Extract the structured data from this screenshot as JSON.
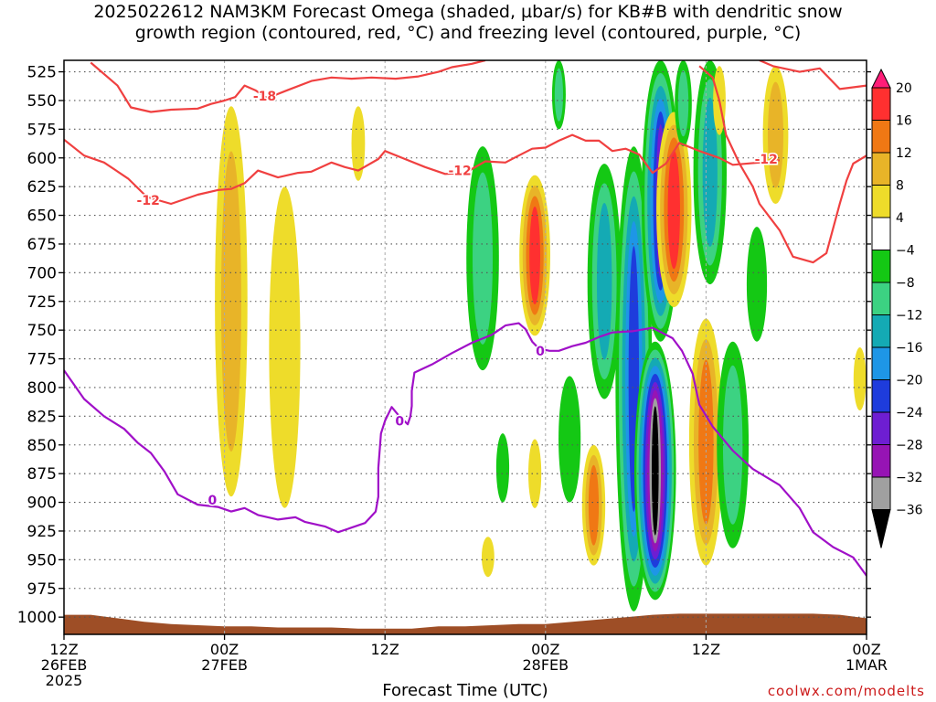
{
  "title": {
    "line1": "2025022612 NAM3KM Forecast Omega (shaded, µbar/s) for KB#B with dendritic snow",
    "line2": "growth region (contoured, red, °C) and freezing level (contoured, purple, °C)"
  },
  "credit": "coolwx.com/modelts",
  "chart_data": {
    "type": "heatmap",
    "title": "2025022612 NAM3KM Forecast Omega (shaded, µbar/s) for KB#B with dendritic snow growth region (contoured, red, °C) and freezing level (contoured, purple, °C)",
    "xlabel": "Forecast Time (UTC)",
    "ylabel": "",
    "x_range_hours": [
      0,
      60
    ],
    "y_axis": {
      "scale": "pressure",
      "range_mb": [
        1015,
        515
      ],
      "inverted": true
    },
    "x_ticks": [
      {
        "hour": 0,
        "lines": [
          "12Z",
          "26FEB",
          "2025"
        ]
      },
      {
        "hour": 12,
        "lines": [
          "00Z",
          "27FEB"
        ]
      },
      {
        "hour": 24,
        "lines": [
          "12Z"
        ]
      },
      {
        "hour": 36,
        "lines": [
          "00Z",
          "28FEB"
        ]
      },
      {
        "hour": 48,
        "lines": [
          "12Z"
        ]
      },
      {
        "hour": 60,
        "lines": [
          "00Z",
          "1MAR"
        ]
      }
    ],
    "y_ticks": [
      525,
      550,
      575,
      600,
      625,
      650,
      675,
      700,
      725,
      750,
      775,
      800,
      825,
      850,
      875,
      900,
      925,
      950,
      975,
      1000
    ],
    "grid": true,
    "colorbar": {
      "levels": [
        "20",
        "16",
        "12",
        "8",
        "4",
        "−4",
        "−8",
        "−12",
        "−16",
        "−20",
        "−24",
        "−28",
        "−32",
        "−36"
      ],
      "colors": [
        "#ff1e78",
        "#ff3030",
        "#f07814",
        "#e8b428",
        "#eedc2a",
        "#ffffff",
        "#14c814",
        "#3cd282",
        "#14aab4",
        "#1e96e6",
        "#1e3cdc",
        "#6e1ed2",
        "#9614b4",
        "#a0a0a0",
        "#000000"
      ]
    },
    "omega_features": [
      {
        "time": 12.5,
        "top_mb": 555,
        "bottom_mb": 895,
        "peak": 10
      },
      {
        "time": 16.5,
        "top_mb": 625,
        "bottom_mb": 905,
        "peak": 6
      },
      {
        "time": 22.0,
        "top_mb": 555,
        "bottom_mb": 620,
        "peak": 5
      },
      {
        "time": 31.3,
        "top_mb": 590,
        "bottom_mb": 785,
        "peak": -10
      },
      {
        "time": 31.7,
        "top_mb": 930,
        "bottom_mb": 965,
        "peak": 5
      },
      {
        "time": 32.8,
        "top_mb": 840,
        "bottom_mb": 900,
        "peak": -6
      },
      {
        "time": 35.2,
        "top_mb": 615,
        "bottom_mb": 755,
        "peak": 16
      },
      {
        "time": 35.2,
        "top_mb": 845,
        "bottom_mb": 905,
        "peak": 6
      },
      {
        "time": 37.0,
        "top_mb": 515,
        "bottom_mb": 575,
        "peak": -8
      },
      {
        "time": 37.8,
        "top_mb": 790,
        "bottom_mb": 900,
        "peak": -6
      },
      {
        "time": 39.6,
        "top_mb": 850,
        "bottom_mb": 955,
        "peak": 12
      },
      {
        "time": 40.4,
        "top_mb": 605,
        "bottom_mb": 810,
        "peak": -14
      },
      {
        "time": 42.6,
        "top_mb": 590,
        "bottom_mb": 995,
        "peak": -22
      },
      {
        "time": 44.2,
        "top_mb": 760,
        "bottom_mb": 985,
        "peak": -38
      },
      {
        "time": 44.6,
        "top_mb": 515,
        "bottom_mb": 760,
        "peak": -26
      },
      {
        "time": 45.6,
        "top_mb": 560,
        "bottom_mb": 730,
        "peak": 18
      },
      {
        "time": 46.3,
        "top_mb": 515,
        "bottom_mb": 590,
        "peak": -10
      },
      {
        "time": 48.3,
        "top_mb": 515,
        "bottom_mb": 710,
        "peak": -12
      },
      {
        "time": 48.0,
        "top_mb": 740,
        "bottom_mb": 955,
        "peak": 14
      },
      {
        "time": 49.0,
        "top_mb": 520,
        "bottom_mb": 580,
        "peak": 5
      },
      {
        "time": 50.0,
        "top_mb": 760,
        "bottom_mb": 940,
        "peak": -8
      },
      {
        "time": 51.8,
        "top_mb": 660,
        "bottom_mb": 760,
        "peak": -6
      },
      {
        "time": 53.2,
        "top_mb": 520,
        "bottom_mb": 640,
        "peak": 10
      },
      {
        "time": 59.5,
        "top_mb": 765,
        "bottom_mb": 820,
        "peak": 5
      }
    ],
    "contours": [
      {
        "label": "-18",
        "color": "#f04040",
        "points": [
          [
            2,
            517
          ],
          [
            4,
            537
          ],
          [
            5,
            556
          ],
          [
            6.5,
            560
          ],
          [
            8,
            558
          ],
          [
            10,
            557
          ],
          [
            11,
            553
          ],
          [
            12,
            550
          ],
          [
            12.8,
            547
          ],
          [
            13.5,
            537
          ],
          [
            14.3,
            541
          ],
          [
            15.2,
            548
          ],
          [
            16.7,
            541
          ],
          [
            18.5,
            533
          ],
          [
            20,
            530
          ],
          [
            21.5,
            531
          ],
          [
            23,
            530
          ],
          [
            24.8,
            531
          ],
          [
            26.5,
            529
          ],
          [
            28,
            525
          ],
          [
            29,
            521
          ],
          [
            30.5,
            518
          ],
          [
            31.5,
            515
          ]
        ]
      },
      {
        "label": "-18",
        "color": "#f04040",
        "points": [
          [
            52,
            515
          ],
          [
            53,
            520
          ],
          [
            55,
            525
          ],
          [
            56.5,
            522
          ],
          [
            58,
            540
          ],
          [
            60,
            537
          ]
        ]
      },
      {
        "label": "-12",
        "color": "#f04040",
        "points": [
          [
            0,
            584
          ],
          [
            1.5,
            598
          ],
          [
            3,
            604
          ],
          [
            4.8,
            618
          ],
          [
            6.2,
            634
          ],
          [
            8,
            640
          ],
          [
            10,
            632
          ],
          [
            11.5,
            628
          ],
          [
            12.5,
            627
          ],
          [
            13.5,
            622
          ],
          [
            14.5,
            611
          ],
          [
            16,
            617
          ],
          [
            17.5,
            613
          ],
          [
            18.5,
            612
          ],
          [
            20,
            604
          ],
          [
            21,
            608
          ],
          [
            22,
            611
          ],
          [
            23.5,
            601
          ],
          [
            24,
            594
          ],
          [
            25.5,
            601
          ],
          [
            27,
            608
          ],
          [
            28.5,
            614
          ],
          [
            30,
            613
          ],
          [
            31.5,
            603
          ],
          [
            33,
            604
          ],
          [
            34,
            598
          ],
          [
            35,
            592
          ],
          [
            36,
            591
          ],
          [
            37,
            585
          ],
          [
            38,
            580
          ],
          [
            39,
            585
          ],
          [
            40,
            585
          ],
          [
            41,
            594
          ],
          [
            42,
            592
          ],
          [
            43,
            597
          ],
          [
            44,
            613
          ],
          [
            45,
            605
          ],
          [
            46,
            587
          ],
          [
            47.5,
            594
          ],
          [
            49,
            600
          ],
          [
            50,
            606
          ],
          [
            52,
            604
          ],
          [
            53.5,
            602
          ]
        ]
      },
      {
        "label": "",
        "color": "#f04040",
        "points": [
          [
            47.5,
            520
          ],
          [
            48.5,
            530
          ],
          [
            49,
            550
          ],
          [
            49.5,
            580
          ],
          [
            50.5,
            605
          ],
          [
            51.5,
            625
          ],
          [
            52,
            640
          ],
          [
            53.5,
            663
          ],
          [
            54.5,
            686
          ],
          [
            56,
            691
          ],
          [
            57,
            683
          ],
          [
            58,
            640
          ],
          [
            58.5,
            620
          ],
          [
            59,
            605
          ],
          [
            60,
            598
          ]
        ]
      },
      {
        "label": "0",
        "color": "#a010c8",
        "points": [
          [
            0,
            785
          ],
          [
            1.5,
            810
          ],
          [
            3,
            825
          ],
          [
            4.5,
            836
          ],
          [
            5.5,
            848
          ],
          [
            6.5,
            857
          ],
          [
            7.5,
            873
          ],
          [
            8.5,
            893
          ],
          [
            10,
            902
          ],
          [
            11.5,
            904
          ],
          [
            12.5,
            908
          ],
          [
            13.5,
            905
          ],
          [
            14.5,
            911
          ],
          [
            16,
            915
          ],
          [
            17.3,
            913
          ],
          [
            18,
            917
          ],
          [
            19.5,
            921
          ],
          [
            20.5,
            926
          ],
          [
            22.5,
            918
          ],
          [
            23.3,
            908
          ],
          [
            23.5,
            895
          ],
          [
            23.5,
            870
          ],
          [
            23.7,
            840
          ],
          [
            24,
            829
          ],
          [
            24.5,
            817
          ],
          [
            25,
            824
          ],
          [
            25.7,
            832
          ],
          [
            25.9,
            825
          ],
          [
            26,
            816
          ],
          [
            26,
            803
          ],
          [
            26.2,
            787
          ],
          [
            27.5,
            780
          ],
          [
            29,
            770
          ],
          [
            30.5,
            761
          ],
          [
            32,
            754
          ],
          [
            33,
            746
          ],
          [
            34,
            744
          ],
          [
            34.5,
            749
          ],
          [
            35,
            760
          ],
          [
            35.5,
            766
          ],
          [
            36.3,
            768
          ],
          [
            37,
            768
          ],
          [
            38,
            764
          ],
          [
            39,
            761
          ],
          [
            40,
            756
          ],
          [
            41,
            752
          ],
          [
            42.5,
            751
          ],
          [
            44,
            748
          ],
          [
            45.5,
            757
          ],
          [
            46.2,
            768
          ],
          [
            47,
            788
          ],
          [
            47.5,
            815
          ],
          [
            48.5,
            834
          ],
          [
            50,
            855
          ],
          [
            51.5,
            871
          ],
          [
            53.5,
            885
          ],
          [
            55,
            905
          ],
          [
            56,
            926
          ],
          [
            57.5,
            939
          ],
          [
            59,
            948
          ],
          [
            60,
            964
          ]
        ]
      }
    ],
    "terrain": {
      "color": "#9e4e26",
      "surface_mb": [
        [
          0,
          998
        ],
        [
          2,
          998
        ],
        [
          4,
          1001
        ],
        [
          6,
          1004
        ],
        [
          8,
          1006
        ],
        [
          10,
          1007
        ],
        [
          12,
          1008
        ],
        [
          14,
          1008
        ],
        [
          16,
          1009
        ],
        [
          18,
          1009
        ],
        [
          20,
          1009
        ],
        [
          22,
          1010
        ],
        [
          24,
          1010
        ],
        [
          26,
          1010
        ],
        [
          28,
          1008
        ],
        [
          30,
          1008
        ],
        [
          32,
          1007
        ],
        [
          34,
          1006
        ],
        [
          36,
          1006
        ],
        [
          38,
          1004
        ],
        [
          40,
          1002
        ],
        [
          42,
          1000
        ],
        [
          44,
          998
        ],
        [
          46,
          997
        ],
        [
          48,
          997
        ],
        [
          50,
          997
        ],
        [
          52,
          997
        ],
        [
          54,
          997
        ],
        [
          56,
          997
        ],
        [
          58,
          998
        ],
        [
          60,
          1001
        ]
      ]
    }
  }
}
